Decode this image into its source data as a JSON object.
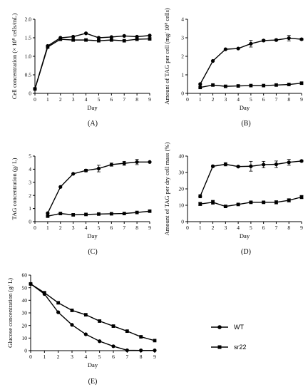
{
  "chart_data": [
    {
      "panel_label": "(A)",
      "type": "line",
      "xlabel": "Day",
      "ylabel": "Cell concentration (× 10⁸ cells/mL)",
      "xlim": [
        0,
        9
      ],
      "ylim": [
        0,
        2.0
      ],
      "xticks": [
        "0",
        "1",
        "2",
        "3",
        "4",
        "5",
        "6",
        "7",
        "8",
        "9"
      ],
      "yticks": [
        "0",
        "0.5",
        "1.0",
        "1.5",
        "2.0"
      ],
      "series": [
        {
          "name": "WT",
          "marker": "circle",
          "x": [
            0,
            1,
            2,
            3,
            4,
            5,
            6,
            7,
            8,
            9
          ],
          "y": [
            0.12,
            1.28,
            1.5,
            1.53,
            1.62,
            1.5,
            1.52,
            1.55,
            1.53,
            1.56
          ],
          "err": [
            0,
            0,
            0,
            0,
            0,
            0,
            0,
            0,
            0,
            0
          ]
        },
        {
          "name": "sr22",
          "marker": "square",
          "x": [
            0,
            1,
            2,
            3,
            4,
            5,
            6,
            7,
            8,
            9
          ],
          "y": [
            0.12,
            1.25,
            1.46,
            1.44,
            1.44,
            1.42,
            1.44,
            1.42,
            1.46,
            1.47
          ],
          "err": [
            0,
            0,
            0,
            0,
            0,
            0,
            0,
            0,
            0,
            0
          ]
        }
      ]
    },
    {
      "panel_label": "(B)",
      "type": "line",
      "xlabel": "Day",
      "ylabel": "Amount of TAG per cell (mg/ 10⁸ cells)",
      "xlim": [
        0,
        9
      ],
      "ylim": [
        0,
        4
      ],
      "xticks": [
        "0",
        "1",
        "2",
        "3",
        "4",
        "5",
        "6",
        "7",
        "8",
        "9"
      ],
      "yticks": [
        "0",
        "1",
        "2",
        "3",
        "4"
      ],
      "series": [
        {
          "name": "WT",
          "marker": "circle",
          "x": [
            1,
            2,
            3,
            4,
            5,
            6,
            7,
            8,
            9
          ],
          "y": [
            0.5,
            1.75,
            2.38,
            2.42,
            2.68,
            2.85,
            2.88,
            2.98,
            2.92
          ],
          "err": [
            0,
            0,
            0,
            0,
            0.18,
            0.05,
            0.05,
            0.15,
            0.05
          ]
        },
        {
          "name": "sr22",
          "marker": "square",
          "x": [
            1,
            2,
            3,
            4,
            5,
            6,
            7,
            8,
            9
          ],
          "y": [
            0.32,
            0.45,
            0.38,
            0.4,
            0.42,
            0.42,
            0.45,
            0.48,
            0.55
          ],
          "err": [
            0,
            0,
            0,
            0,
            0,
            0,
            0,
            0,
            0
          ]
        }
      ]
    },
    {
      "panel_label": "(C)",
      "type": "line",
      "xlabel": "Day",
      "ylabel": "TAG concentration (g/ L)",
      "xlim": [
        0,
        9
      ],
      "ylim": [
        0,
        5
      ],
      "xticks": [
        "0",
        "1",
        "2",
        "3",
        "4",
        "5",
        "6",
        "7",
        "8",
        "9"
      ],
      "yticks": [
        "0",
        "1",
        "2",
        "3",
        "4",
        "5"
      ],
      "series": [
        {
          "name": "WT",
          "marker": "circle",
          "x": [
            1,
            2,
            3,
            4,
            5,
            6,
            7,
            8,
            9
          ],
          "y": [
            0.65,
            2.65,
            3.65,
            3.9,
            4.05,
            4.35,
            4.45,
            4.55,
            4.55
          ],
          "err": [
            0,
            0,
            0,
            0.1,
            0.25,
            0.12,
            0.15,
            0.2,
            0
          ]
        },
        {
          "name": "sr22",
          "marker": "square",
          "x": [
            1,
            2,
            3,
            4,
            5,
            6,
            7,
            8,
            9
          ],
          "y": [
            0.42,
            0.62,
            0.52,
            0.55,
            0.58,
            0.6,
            0.62,
            0.7,
            0.8
          ],
          "err": [
            0,
            0,
            0,
            0,
            0,
            0,
            0,
            0,
            0
          ]
        }
      ]
    },
    {
      "panel_label": "(D)",
      "type": "line",
      "xlabel": "Day",
      "ylabel": "Amount of TAG per dry cell mass (%)",
      "xlim": [
        0,
        9
      ],
      "ylim": [
        0,
        40
      ],
      "xticks": [
        "0",
        "1",
        "2",
        "3",
        "4",
        "5",
        "6",
        "7",
        "8",
        "9"
      ],
      "yticks": [
        "0",
        "10",
        "20",
        "30",
        "40"
      ],
      "series": [
        {
          "name": "WT",
          "marker": "circle",
          "x": [
            1,
            2,
            3,
            4,
            5,
            6,
            7,
            8,
            9
          ],
          "y": [
            15.5,
            33.8,
            35.0,
            33.6,
            33.8,
            34.8,
            35.0,
            36.2,
            37.0
          ],
          "err": [
            1.0,
            0.5,
            1.0,
            0.5,
            3.0,
            2.0,
            2.0,
            1.8,
            0.5
          ]
        },
        {
          "name": "sr22",
          "marker": "square",
          "x": [
            1,
            2,
            3,
            4,
            5,
            6,
            7,
            8,
            9
          ],
          "y": [
            10.8,
            11.8,
            9.3,
            10.5,
            11.8,
            11.8,
            11.8,
            13.0,
            15.0
          ],
          "err": [
            1.0,
            1.2,
            0.8,
            0.5,
            0.5,
            0.5,
            1.0,
            1.0,
            1.0
          ]
        }
      ]
    },
    {
      "panel_label": "(E)",
      "type": "line",
      "xlabel": "Day",
      "ylabel": "Glucose concentration (g/ L)",
      "xlim": [
        0,
        9
      ],
      "ylim": [
        0,
        60
      ],
      "xticks": [
        "0",
        "1",
        "2",
        "3",
        "4",
        "5",
        "6",
        "7",
        "8",
        "9"
      ],
      "yticks": [
        "0",
        "10",
        "20",
        "30",
        "40",
        "50",
        "60"
      ],
      "legend": {
        "placement": "right",
        "entries": [
          {
            "label": "WT",
            "marker": "circle"
          },
          {
            "label": "sr22",
            "marker": "square"
          }
        ]
      },
      "series": [
        {
          "name": "WT",
          "marker": "circle",
          "x": [
            0,
            1,
            2,
            3,
            4,
            5,
            6,
            7,
            8,
            9
          ],
          "y": [
            53,
            45,
            30.5,
            20.5,
            13,
            7.5,
            3.5,
            0.3,
            0.2,
            0.2
          ],
          "err": [
            0,
            0,
            0,
            0,
            0,
            0,
            0,
            0,
            0,
            0
          ]
        },
        {
          "name": "sr22",
          "marker": "square",
          "x": [
            0,
            1,
            2,
            3,
            4,
            5,
            6,
            7,
            8,
            9
          ],
          "y": [
            53,
            46,
            38,
            32,
            28.5,
            23.5,
            19.5,
            15.5,
            11,
            8
          ],
          "err": [
            0,
            0,
            0,
            0,
            0,
            0,
            0,
            0,
            0,
            0
          ]
        }
      ]
    }
  ]
}
